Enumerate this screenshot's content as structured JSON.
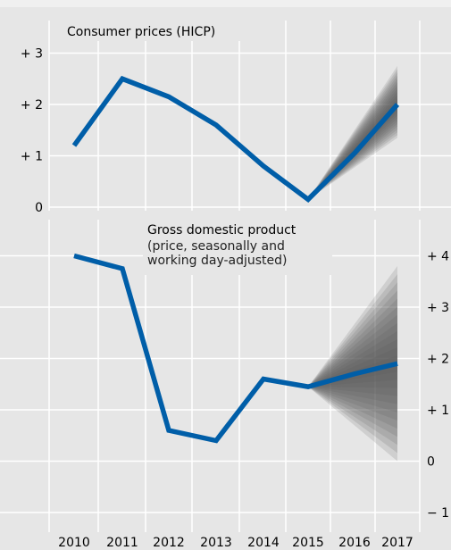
{
  "chart_data": [
    {
      "type": "line",
      "title": "Consumer prices (HICP)",
      "subtitle": [],
      "x": [
        "2010",
        "2011",
        "2012",
        "2013",
        "2014",
        "2015",
        "2016",
        "2017"
      ],
      "series": [
        {
          "values": [
            1.2,
            2.5,
            2.15,
            1.6,
            0.8,
            0.15,
            1.05,
            2.0
          ]
        }
      ],
      "fan": {
        "from": "2015",
        "to": "2017",
        "upper": 2.75,
        "lower": 1.35
      },
      "y_ticks": [
        0,
        1,
        2,
        3
      ],
      "y_tick_labels": [
        "0",
        "+ 1",
        "+ 2",
        "+ 3"
      ],
      "ylim": [
        0,
        3
      ],
      "y_axis_side": "left",
      "color": "#005ea8"
    },
    {
      "type": "line",
      "title": "Gross domestic product",
      "subtitle": [
        "(price, seasonally and",
        "working day-adjusted)"
      ],
      "x": [
        "2010",
        "2011",
        "2012",
        "2013",
        "2014",
        "2015",
        "2016",
        "2017"
      ],
      "series": [
        {
          "values": [
            4.0,
            3.75,
            0.6,
            0.4,
            1.6,
            1.45,
            1.7,
            1.9
          ]
        }
      ],
      "fan": {
        "from": "2015",
        "to": "2017",
        "upper": 3.8,
        "lower": 0.0
      },
      "y_ticks": [
        -1,
        0,
        1,
        2,
        3,
        4
      ],
      "y_tick_labels": [
        "− 1",
        "0",
        "+ 1",
        "+ 2",
        "+ 3",
        "+ 4"
      ],
      "ylim": [
        -1,
        4
      ],
      "y_axis_side": "right",
      "color": "#005ea8"
    }
  ],
  "x_tick_labels": [
    "2010",
    "2011",
    "2012",
    "2013",
    "2014",
    "2015",
    "2016",
    "2017"
  ],
  "colors": {
    "background": "#e6e6e6",
    "panel_light": "#f0f0f0",
    "gridline": "#ffffff",
    "line": "#005ea8",
    "fan": "#555555"
  }
}
